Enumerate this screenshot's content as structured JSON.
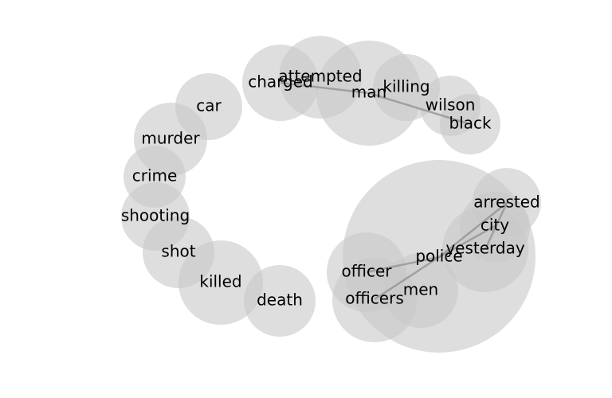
{
  "colors": {
    "bubble": "#c8c8c8",
    "edge": "#8c8c8c",
    "text": "#000000",
    "background": "#ffffff"
  },
  "nodes": [
    {
      "id": "charged",
      "label": "charged"
    },
    {
      "id": "attempted",
      "label": "attempted"
    },
    {
      "id": "man",
      "label": "man"
    },
    {
      "id": "killing",
      "label": "killing"
    },
    {
      "id": "wilson",
      "label": "wilson"
    },
    {
      "id": "black",
      "label": "black"
    },
    {
      "id": "car",
      "label": "car"
    },
    {
      "id": "murder",
      "label": "murder"
    },
    {
      "id": "crime",
      "label": "crime"
    },
    {
      "id": "shooting",
      "label": "shooting"
    },
    {
      "id": "shot",
      "label": "shot"
    },
    {
      "id": "killed",
      "label": "killed"
    },
    {
      "id": "death",
      "label": "death"
    },
    {
      "id": "police",
      "label": "police"
    },
    {
      "id": "arrested",
      "label": "arrested"
    },
    {
      "id": "city",
      "label": "city"
    },
    {
      "id": "yesterday",
      "label": "yesterday"
    },
    {
      "id": "officer",
      "label": "officer"
    },
    {
      "id": "men",
      "label": "men"
    },
    {
      "id": "officers",
      "label": "officers"
    }
  ],
  "edges": [
    {
      "source": "charged",
      "target": "man"
    },
    {
      "source": "man",
      "target": "black"
    },
    {
      "source": "officer",
      "target": "police"
    },
    {
      "source": "officers",
      "target": "police"
    },
    {
      "source": "police",
      "target": "arrested"
    },
    {
      "source": "police",
      "target": "city"
    },
    {
      "source": "yesterday",
      "target": "arrested"
    }
  ]
}
